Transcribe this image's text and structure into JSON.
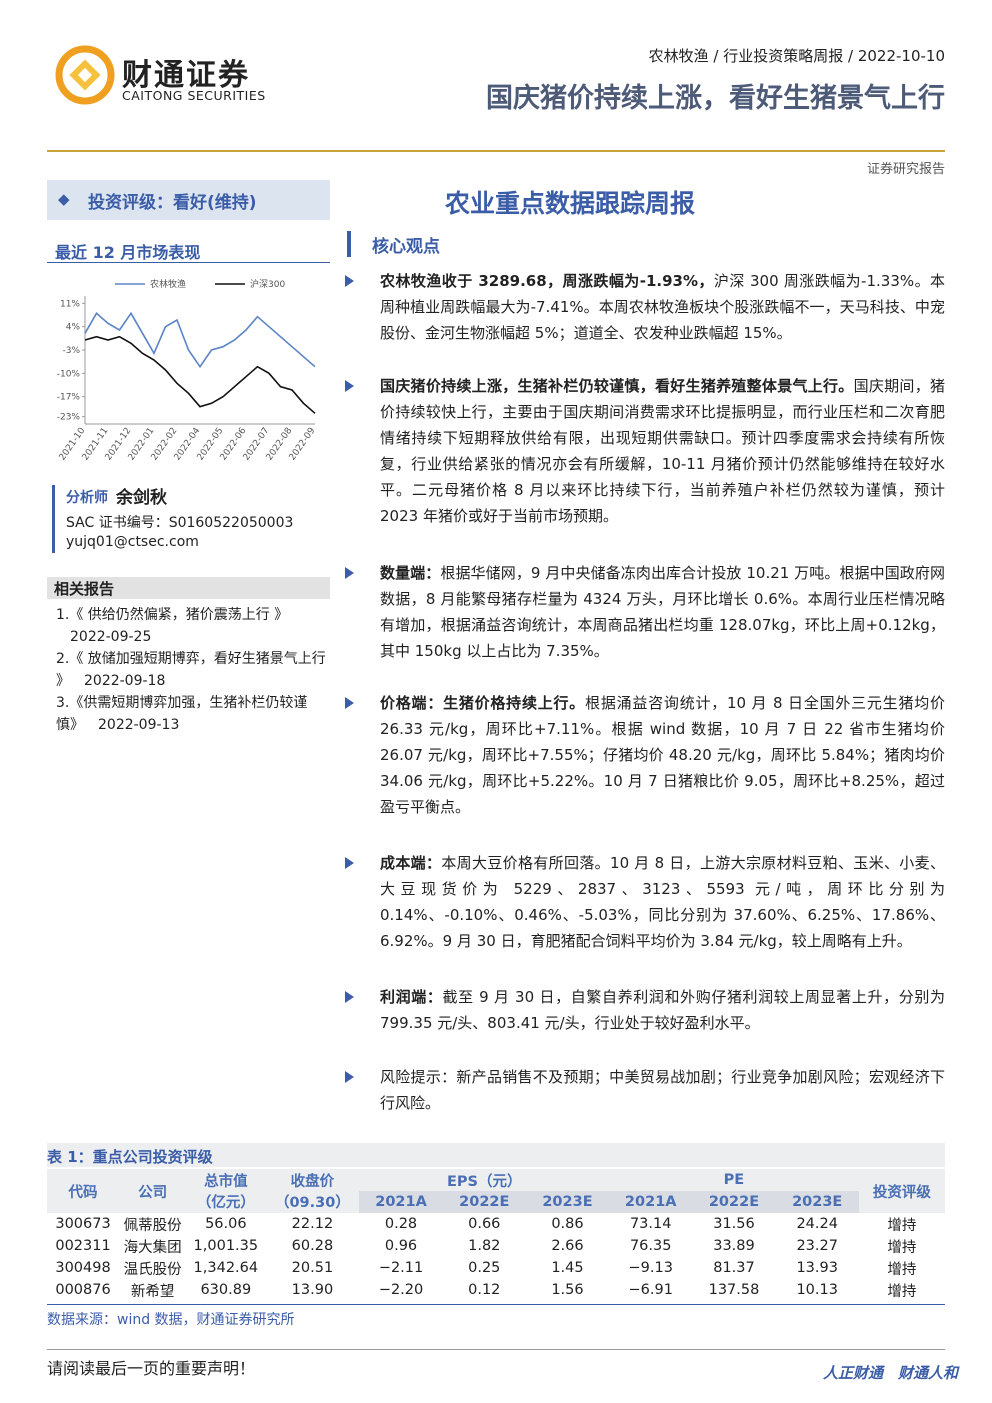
{
  "header": {
    "logo_cn": "财通证券",
    "logo_en": "CAITONG SECURITIES",
    "breadcrumb": "农林牧渔 / 行业投资策略周报 / 2022-10-10",
    "title": "国庆猪价持续上涨，看好生猪景气上行",
    "doc_type": "证券研究报告"
  },
  "sidebar": {
    "rating": "投资评级：看好(维持)",
    "analyst": {
      "label": "分析师",
      "name": "余剑秋",
      "sac": "SAC 证书编号：S0160522050003",
      "email": "yujq01@ctsec.com"
    },
    "related": {
      "title": "相关报告",
      "items": [
        {
          "title": "1.《 供给仍然偏紧，猪价震荡上行 》",
          "date": "2022-09-25"
        },
        {
          "title": "2.《 放储加强短期博弈，看好生猪景气上行 》",
          "date": "2022-09-18"
        },
        {
          "title": "3.《供需短期博弈加强，生猪补栏仍较谨慎》",
          "date": "2022-09-13"
        }
      ]
    }
  },
  "chart_data": {
    "type": "line",
    "title": "最近 12 月市场表现",
    "categories": [
      "2021-10",
      null,
      "2021-11",
      null,
      "2021-12",
      null,
      "2022-01",
      null,
      "2022-02",
      null,
      "2022-04",
      null,
      "2022-05",
      null,
      "2022-06",
      null,
      "2022-07",
      null,
      "2022-08",
      null,
      "2022-09"
    ],
    "series": [
      {
        "name": "农林牧渔",
        "color": "#5b84c4",
        "values": [
          2,
          8,
          5,
          3,
          8,
          2,
          -4,
          4,
          6,
          -3,
          -8,
          -3,
          -2,
          0,
          3,
          7,
          4,
          1,
          -2,
          -5,
          -8
        ]
      },
      {
        "name": "沪深300",
        "color": "#111111",
        "values": [
          0,
          1,
          0,
          1,
          -1,
          -4,
          -6,
          -9,
          -13,
          -16,
          -20,
          -19,
          -17,
          -14,
          -11,
          -8,
          -10,
          -14,
          -15,
          -19,
          -22
        ]
      }
    ],
    "ylim": [
      -24,
      12
    ],
    "yticks": [
      {
        "value": 11,
        "label": "11%"
      },
      {
        "value": 4,
        "label": "4%"
      },
      {
        "value": -3,
        "label": "-3%"
      },
      {
        "value": -10,
        "label": "-10%"
      },
      {
        "value": -17,
        "label": "-17%"
      },
      {
        "value": -23,
        "label": "-23%"
      }
    ]
  },
  "main": {
    "title": "农业重点数据跟踪周报",
    "section": "核心观点",
    "bullets": [
      {
        "lead": "农林牧渔收于 3289.68，周涨跌幅为-1.93%，",
        "text": "沪深 300 周涨跌幅为-1.33%。本周种植业周跌幅最大为-7.41%。本周农林牧渔板块个股涨跌幅不一，天马科技、中宠股份、金河生物涨幅超 5%；道道全、农发种业跌幅超 15%。"
      },
      {
        "lead": "国庆猪价持续上涨，生猪补栏仍较谨慎，看好生猪养殖整体景气上行。",
        "text": "国庆期间，猪价持续较快上行，主要由于国庆期间消费需求环比提振明显，而行业压栏和二次育肥情绪持续下短期释放供给有限，出现短期供需缺口。预计四季度需求会持续有所恢复，行业供给紧张的情况亦会有所缓解，10-11 月猪价预计仍然能够维持在较好水平。二元母猪价格 8 月以来环比持续下行，当前养殖户补栏仍然较为谨慎，预计 2023 年猪价或好于当前市场预期。"
      },
      {
        "lead": "数量端：",
        "text": "根据华储网，9 月中央储备冻肉出库合计投放 10.21 万吨。根据中国政府网数据，8 月能繁母猪存栏量为 4324 万头，月环比增长 0.6%。本周行业压栏情况略有增加，根据涌益咨询统计，本周商品猪出栏均重 128.07kg，环比上周+0.12kg，其中 150kg 以上占比为 7.35%。"
      },
      {
        "lead": "价格端：生猪价格持续上行。",
        "text": "根据涌益咨询统计，10 月 8 日全国外三元生猪均价 26.33 元/kg，周环比+7.11%。根据 wind 数据，10 月 7 日 22 省市生猪均价 26.07 元/kg，周环比+7.55%；仔猪均价 48.20 元/kg，周环比 5.84%；猪肉均价 34.06 元/kg，周环比+5.22%。10 月 7 日猪粮比价 9.05，周环比+8.25%，超过盈亏平衡点。"
      },
      {
        "lead": "成本端：",
        "text": "本周大豆价格有所回落。10 月 8 日，上游大宗原材料豆粕、玉米、小麦、大豆现货价为 5229、2837、3123、5593 元/吨，周环比分别为 0.14%、-0.10%、0.46%、-5.03%，同比分别为 37.60%、6.25%、17.86%、6.92%。9 月 30 日，育肥猪配合饲料平均价为 3.84 元/kg，较上周略有上升。"
      },
      {
        "lead": "利润端：",
        "text": "截至 9 月 30 日，自繁自养利润和外购仔猪利润较上周显著上升，分别为 799.35 元/头、803.41 元/头，行业处于较好盈利水平。"
      },
      {
        "text": "风险提示：新产品销售不及预期；中美贸易战加剧；行业竞争加剧风险；宏观经济下行风险。"
      }
    ]
  },
  "table": {
    "caption": "表 1：重点公司投资评级",
    "header": {
      "code": "代码",
      "company": "公司",
      "mcap": [
        "总市值",
        "（亿元）"
      ],
      "price": [
        "收盘价",
        "（09.30）"
      ],
      "eps": "EPS（元）",
      "pe": "PE",
      "years": [
        "2021A",
        "2022E",
        "2023E"
      ],
      "rating": "投资评级"
    },
    "rows": [
      [
        "300673",
        "佩蒂股份",
        "56.06",
        "22.12",
        "0.28",
        "0.66",
        "0.86",
        "73.14",
        "31.56",
        "24.24",
        "增持"
      ],
      [
        "002311",
        "海大集团",
        "1,001.35",
        "60.28",
        "0.96",
        "1.82",
        "2.66",
        "76.35",
        "33.89",
        "23.27",
        "增持"
      ],
      [
        "300498",
        "温氏股份",
        "1,342.64",
        "20.51",
        "−2.11",
        "0.25",
        "1.45",
        "−9.13",
        "81.37",
        "13.93",
        "增持"
      ],
      [
        "000876",
        "新希望",
        "630.89",
        "13.90",
        "−2.20",
        "0.12",
        "1.56",
        "−6.91",
        "137.58",
        "10.13",
        "增持"
      ]
    ],
    "source": "数据来源：wind 数据，财通证券研究所"
  },
  "footer": {
    "notice": "请阅读最后一页的重要声明！",
    "slogan": "人正财通　财通人和"
  }
}
